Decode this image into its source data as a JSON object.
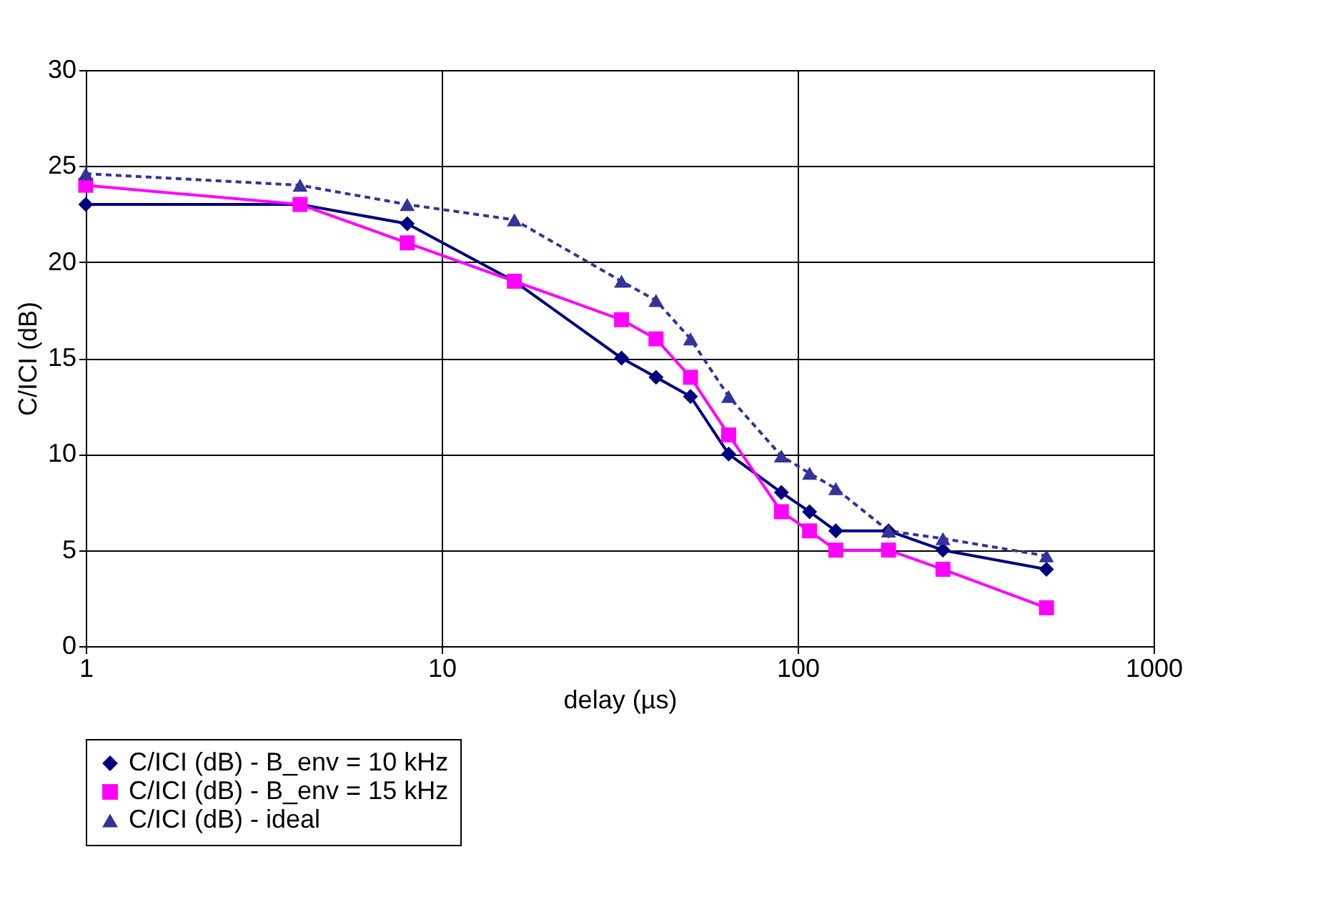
{
  "chart_data": {
    "type": "line",
    "xlabel": "delay (µs)",
    "ylabel": "C/ICI (dB)",
    "log": "x",
    "xlim": [
      1,
      1000
    ],
    "xticks": [
      1,
      10,
      100,
      1000
    ],
    "ylim": [
      0,
      30
    ],
    "yticks": [
      0,
      5,
      10,
      15,
      20,
      25,
      30
    ],
    "grid": true,
    "legend": "bottom",
    "x": [
      1,
      4,
      8,
      16,
      32,
      40,
      50,
      64,
      90,
      108,
      128,
      180,
      256,
      500
    ],
    "series": [
      {
        "name": "C/ICI (dB) - B_env = 10 kHz",
        "color": "#000080",
        "marker": "diamond",
        "line_style": "solid",
        "values": [
          23,
          23,
          22,
          19,
          15,
          14,
          13,
          10,
          8,
          7,
          6,
          6,
          5,
          4
        ]
      },
      {
        "name": "C/ICI (dB) - B_env = 15 kHz",
        "color": "#ff00ff",
        "marker": "square",
        "line_style": "solid",
        "values": [
          24,
          23,
          21,
          19,
          17,
          16,
          14,
          11,
          7,
          6,
          5,
          5,
          4,
          2
        ]
      },
      {
        "name": "C/ICI (dB) - ideal",
        "color": "#333399",
        "marker": "triangle",
        "line_style": "dashed",
        "values": [
          24.6,
          24,
          23,
          22.2,
          19,
          18,
          16,
          13,
          9.9,
          9,
          8.2,
          6,
          5.6,
          4.7
        ]
      }
    ]
  }
}
